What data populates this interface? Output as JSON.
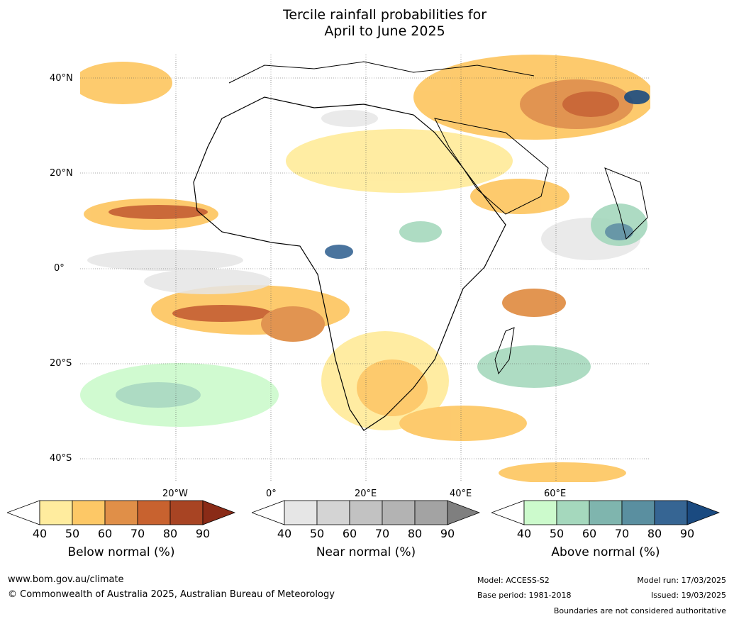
{
  "title_line1": "Tercile rainfall probabilities for",
  "title_line2": "April to June 2025",
  "map": {
    "lat_labels": [
      "40°N",
      "20°N",
      "0°",
      "20°S",
      "40°S"
    ],
    "lon_labels": [
      "20°W",
      "0°",
      "20°E",
      "40°E",
      "60°E"
    ]
  },
  "colorbars": [
    {
      "label": "Below normal (%)",
      "ticks": [
        "40",
        "50",
        "60",
        "70",
        "80",
        "90"
      ],
      "colors": [
        "#ffffff",
        "#ffec9e",
        "#fdc866",
        "#e08f48",
        "#c8622f",
        "#a84423",
        "#8a2b17"
      ]
    },
    {
      "label": "Near normal (%)",
      "ticks": [
        "40",
        "50",
        "60",
        "70",
        "80",
        "90"
      ],
      "colors": [
        "#ffffff",
        "#e6e6e6",
        "#d4d4d4",
        "#c2c2c2",
        "#b3b3b3",
        "#a3a3a3",
        "#7f7f7f"
      ]
    },
    {
      "label": "Above normal (%)",
      "ticks": [
        "40",
        "50",
        "60",
        "70",
        "80",
        "90"
      ],
      "colors": [
        "#ffffff",
        "#ccfacc",
        "#a5d8bd",
        "#7fb5ae",
        "#5a8fa0",
        "#366593",
        "#1a4a80"
      ]
    }
  ],
  "footer": {
    "url": "www.bom.gov.au/climate",
    "copyright": "© Commonwealth of Australia 2025, Australian Bureau of Meteorology",
    "model": "Model: ACCESS-S2",
    "base_period": "Base period: 1981-2018",
    "model_run": "Model run: 17/03/2025",
    "issued": "Issued: 19/03/2025",
    "disclaimer": "Boundaries are not considered authoritative"
  }
}
